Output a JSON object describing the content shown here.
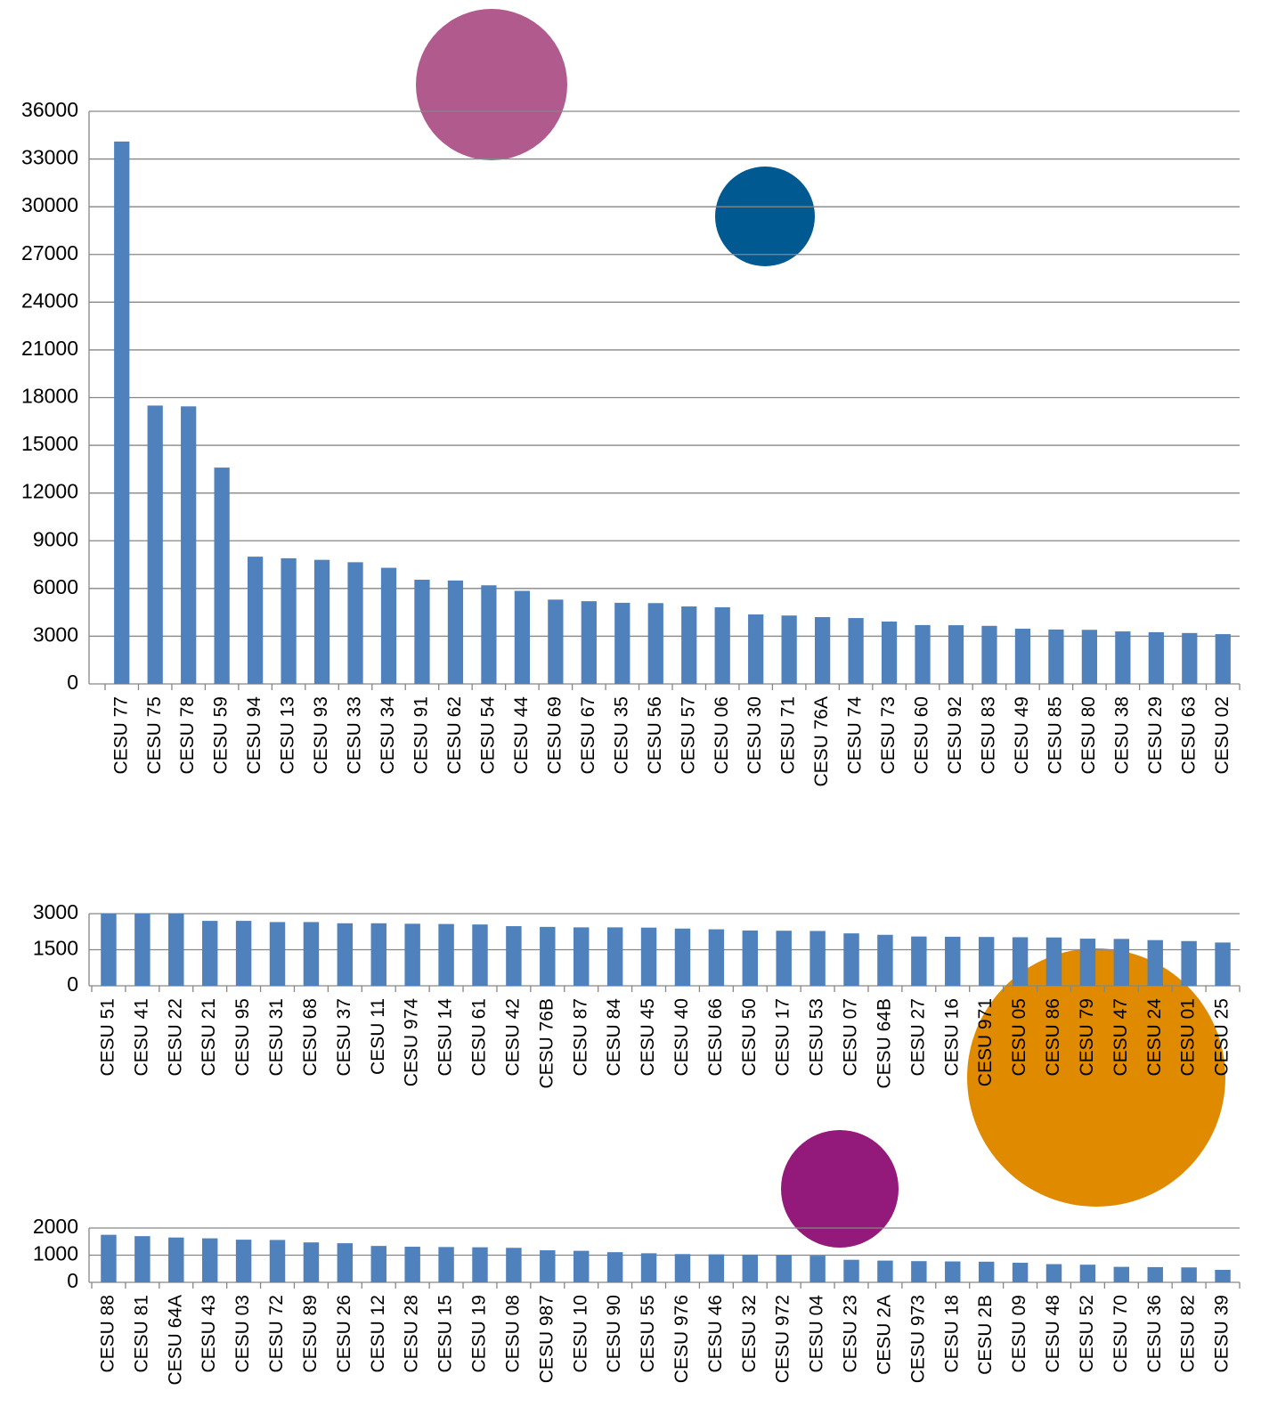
{
  "chart_data": [
    {
      "type": "bar",
      "color": "#4f81bd",
      "grid": true,
      "categories": [
        "CESU 77",
        "CESU 75",
        "CESU 78",
        "CESU 59",
        "CESU 94",
        "CESU 13",
        "CESU 93",
        "CESU 33",
        "CESU 34",
        "CESU 91",
        "CESU 62",
        "CESU 54",
        "CESU 44",
        "CESU 69",
        "CESU 67",
        "CESU 35",
        "CESU 56",
        "CESU 57",
        "CESU 06",
        "CESU 30",
        "CESU 71",
        "CESU 76A",
        "CESU 74",
        "CESU 73",
        "CESU 60",
        "CESU 92",
        "CESU 83",
        "CESU 49",
        "CESU 85",
        "CESU 80",
        "CESU 38",
        "CESU 29",
        "CESU 63",
        "CESU 02"
      ],
      "values": [
        34100,
        17500,
        17450,
        13600,
        8000,
        7900,
        7800,
        7650,
        7300,
        6550,
        6500,
        6200,
        5850,
        5300,
        5200,
        5100,
        5080,
        4870,
        4820,
        4370,
        4300,
        4200,
        4140,
        3920,
        3700,
        3690,
        3650,
        3470,
        3420,
        3400,
        3300,
        3250,
        3200,
        3130
      ],
      "ylim": [
        0,
        36000
      ],
      "yticks": [
        0,
        3000,
        6000,
        9000,
        12000,
        15000,
        18000,
        21000,
        24000,
        27000,
        30000,
        33000,
        36000
      ]
    },
    {
      "type": "bar",
      "color": "#4f81bd",
      "grid": true,
      "categories": [
        "CESU 51",
        "CESU 41",
        "CESU 22",
        "CESU 21",
        "CESU 95",
        "CESU 31",
        "CESU 68",
        "CESU 37",
        "CESU 11",
        "CESU 974",
        "CESU 14",
        "CESU 61",
        "CESU 42",
        "CESU 76B",
        "CESU 87",
        "CESU 84",
        "CESU 45",
        "CESU 40",
        "CESU 66",
        "CESU 50",
        "CESU 17",
        "CESU 53",
        "CESU 07",
        "CESU 64B",
        "CESU 27",
        "CESU 16",
        "CESU 971",
        "CESU 05",
        "CESU 86",
        "CESU 79",
        "CESU 47",
        "CESU 24",
        "CESU 01",
        "CESU 25"
      ],
      "values": [
        3000,
        3000,
        3000,
        2700,
        2700,
        2650,
        2650,
        2600,
        2600,
        2580,
        2570,
        2550,
        2480,
        2450,
        2430,
        2430,
        2420,
        2380,
        2350,
        2300,
        2290,
        2280,
        2180,
        2120,
        2050,
        2040,
        2030,
        2020,
        2010,
        1960,
        1950,
        1900,
        1860,
        1800
      ],
      "ylim": [
        0,
        3000
      ],
      "yticks": [
        0,
        1500,
        3000
      ]
    },
    {
      "type": "bar",
      "color": "#4f81bd",
      "grid": true,
      "categories": [
        "CESU 88",
        "CESU 81",
        "CESU 64A",
        "CESU 43",
        "CESU 03",
        "CESU 72",
        "CESU 89",
        "CESU 26",
        "CESU 12",
        "CESU 28",
        "CESU 15",
        "CESU 19",
        "CESU 08",
        "CESU 987",
        "CESU 10",
        "CESU 90",
        "CESU 55",
        "CESU 976",
        "CESU 46",
        "CESU 32",
        "CESU 972",
        "CESU 04",
        "CESU 23",
        "CESU 2A",
        "CESU 973",
        "CESU 18",
        "CESU 2B",
        "CESU 09",
        "CESU 48",
        "CESU 52",
        "CESU 70",
        "CESU 36",
        "CESU 82",
        "CESU 39"
      ],
      "values": [
        1750,
        1700,
        1650,
        1620,
        1570,
        1560,
        1470,
        1440,
        1340,
        1310,
        1300,
        1290,
        1270,
        1180,
        1160,
        1110,
        1070,
        1040,
        1030,
        1020,
        1010,
        980,
        830,
        800,
        780,
        770,
        760,
        720,
        670,
        650,
        570,
        560,
        550,
        460
      ],
      "ylim": [
        0,
        2000
      ],
      "yticks": [
        0,
        1000,
        2000
      ]
    }
  ]
}
